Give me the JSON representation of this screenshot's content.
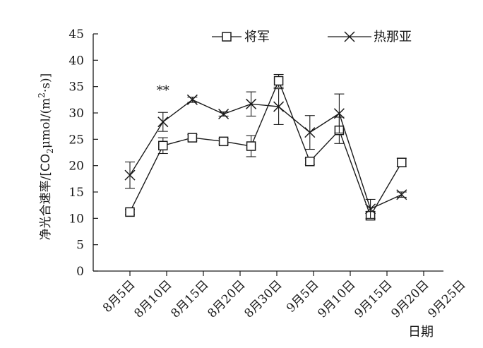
{
  "chart_data": {
    "type": "line",
    "title": "",
    "ylabel": "净光合速率/[CO₂μmol/(m²·s)]",
    "ylabel_parts": {
      "cjk": "净光合速率/[CO",
      "sub": "2",
      "mid": "μmol/(m",
      "sup": "2",
      "end": "·s)]"
    },
    "xlabel": "日期",
    "ylim": [
      0,
      45
    ],
    "yticks": [
      0,
      5,
      10,
      15,
      20,
      25,
      30,
      35,
      40,
      45
    ],
    "ytick_labels": [
      "0",
      "5",
      "10",
      "15",
      "20",
      "25",
      "30",
      "35",
      "40",
      "45"
    ],
    "categories": [
      "8月5日",
      "8月10日",
      "8月15日",
      "8月20日",
      "8月30日",
      "9月5日",
      "9月10日",
      "9月15日",
      "9月20日",
      "9月25日"
    ],
    "x": [
      1,
      1.9,
      2.7,
      3.55,
      4.3,
      5.05,
      5.9,
      6.7,
      7.55,
      8.4,
      9.25
    ],
    "series": [
      {
        "name": "将军",
        "marker": "square",
        "values": [
          11.2,
          23.8,
          25.3,
          24.6,
          23.7,
          36.1,
          20.8,
          26.7,
          10.5,
          20.6,
          null
        ],
        "errors": [
          0.5,
          1.5,
          0.6,
          0.5,
          2.0,
          1.2,
          0.6,
          2.5,
          0.8,
          0.8,
          null
        ]
      },
      {
        "name": "热那亚",
        "marker": "x",
        "values": [
          18.2,
          28.3,
          32.5,
          29.8,
          31.7,
          31.2,
          26.3,
          29.9,
          11.8,
          14.5,
          null
        ],
        "errors": [
          2.5,
          1.8,
          0.5,
          0.4,
          2.3,
          3.4,
          3.2,
          3.7,
          1.8,
          0.5,
          null
        ]
      }
    ],
    "annotations": [
      {
        "text": "**",
        "x": 1.9,
        "y": 33.5
      }
    ],
    "legend": "top-right",
    "grid": false,
    "colors": {
      "line": "#1a1a1a",
      "background": "#ffffff"
    }
  }
}
